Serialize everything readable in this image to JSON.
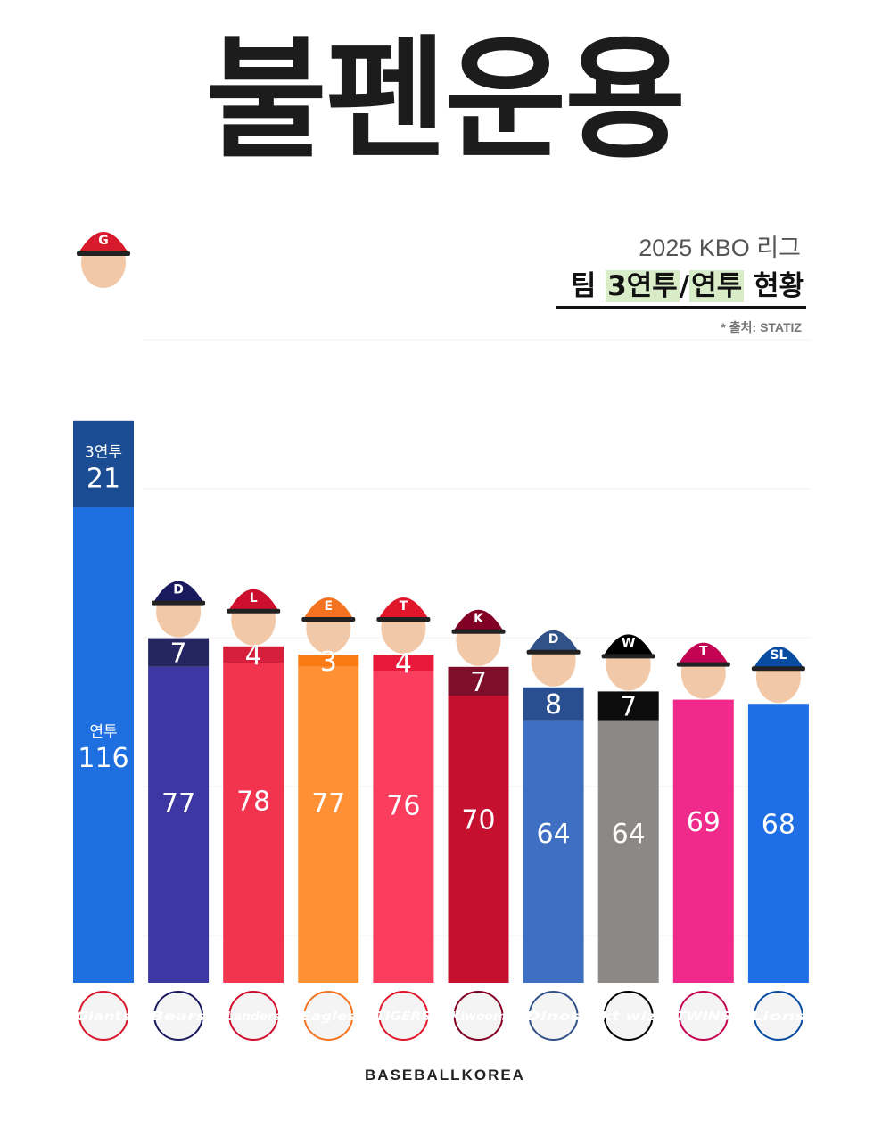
{
  "title": "불펜운용",
  "subtitle_year": "2025 KBO 리그",
  "subtitle_main": {
    "prefix": "팀 ",
    "hl1": "3연투",
    "sep": "/",
    "hl2": "연투",
    "suffix": " 현황"
  },
  "source": "* 출처: STATIZ",
  "footer": "BASEBALLKOREA",
  "legend_labels": {
    "three": "3연투",
    "consec": "연투"
  },
  "chart_data": {
    "type": "bar",
    "stacked": true,
    "categories": [
      "Giants",
      "Bears",
      "Landers",
      "Eagles",
      "Tigers",
      "Kiwoom",
      "Dinos",
      "kt wiz",
      "Twins",
      "Lions"
    ],
    "series": [
      {
        "name": "3연투",
        "values": [
          21,
          7,
          4,
          3,
          4,
          7,
          8,
          7,
          null,
          null
        ]
      },
      {
        "name": "연투",
        "values": [
          116,
          77,
          78,
          77,
          76,
          70,
          64,
          64,
          69,
          68
        ]
      }
    ],
    "colors": {
      "three": [
        "#1a4d94",
        "#252660",
        "#d51f3b",
        "#fa7a14",
        "#e8193a",
        "#7e0f2b",
        "#2a4f90",
        "#0c0c0c",
        "#e81d78",
        "#1e6ee6"
      ],
      "consec": [
        "#1e6fe0",
        "#3c37a2",
        "#f2344f",
        "#ff9034",
        "#fb3e5e",
        "#c6102f",
        "#3e6fc2",
        "#8c8885",
        "#f02a8a",
        "#1e6ee6"
      ],
      "logo": [
        "#d7192e",
        "#1a1a5e",
        "#ce0e2d",
        "#f37321",
        "#e0162b",
        "#820024",
        "#315288",
        "#000000",
        "#c30452",
        "#074ca1"
      ]
    },
    "logos": [
      "Giants",
      "Bears",
      "Landers",
      "Eagles",
      "TIGERS",
      "Kiwoom",
      "Dinos",
      "kt wiz",
      "TWINS",
      "Lions"
    ],
    "cap_letters": [
      "G",
      "D",
      "L",
      "E",
      "T",
      "K",
      "D",
      "W",
      "T",
      "SL"
    ]
  }
}
